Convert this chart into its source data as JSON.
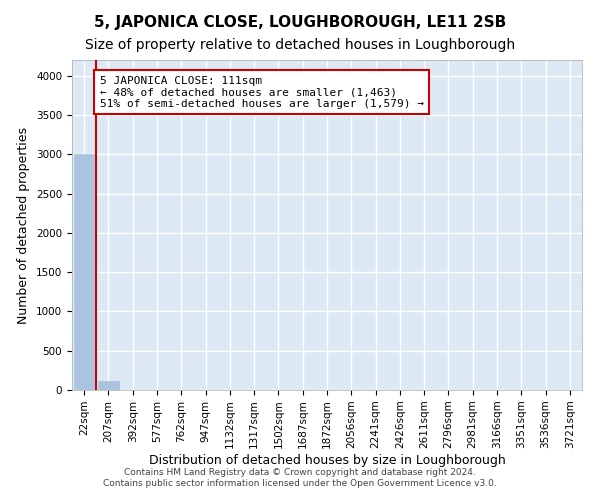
{
  "title": "5, JAPONICA CLOSE, LOUGHBOROUGH, LE11 2SB",
  "subtitle": "Size of property relative to detached houses in Loughborough",
  "xlabel": "Distribution of detached houses by size in Loughborough",
  "ylabel": "Number of detached properties",
  "footer_line1": "Contains HM Land Registry data © Crown copyright and database right 2024.",
  "footer_line2": "Contains public sector information licensed under the Open Government Licence v3.0.",
  "bin_labels": [
    "22sqm",
    "207sqm",
    "392sqm",
    "577sqm",
    "762sqm",
    "947sqm",
    "1132sqm",
    "1317sqm",
    "1502sqm",
    "1687sqm",
    "1872sqm",
    "2056sqm",
    "2241sqm",
    "2426sqm",
    "2611sqm",
    "2796sqm",
    "2981sqm",
    "3166sqm",
    "3351sqm",
    "3536sqm",
    "3721sqm"
  ],
  "bar_values": [
    3000,
    110,
    0,
    0,
    0,
    0,
    0,
    0,
    0,
    0,
    0,
    0,
    0,
    0,
    0,
    0,
    0,
    0,
    0,
    0,
    0
  ],
  "bar_color": "#aac4e0",
  "bar_edge_color": "#aac4e0",
  "background_color": "#dce9f5",
  "grid_color": "#ffffff",
  "annotation_text": "5 JAPONICA CLOSE: 111sqm\n← 48% of detached houses are smaller (1,463)\n51% of semi-detached houses are larger (1,579) →",
  "annotation_box_color": "#ffffff",
  "annotation_box_edge": "#cc0000",
  "vline_color": "#cc0000",
  "ylim": [
    0,
    4200
  ],
  "yticks": [
    0,
    500,
    1000,
    1500,
    2000,
    2500,
    3000,
    3500,
    4000
  ],
  "title_fontsize": 11,
  "subtitle_fontsize": 10,
  "label_fontsize": 9,
  "tick_fontsize": 7.5,
  "annotation_fontsize": 8
}
